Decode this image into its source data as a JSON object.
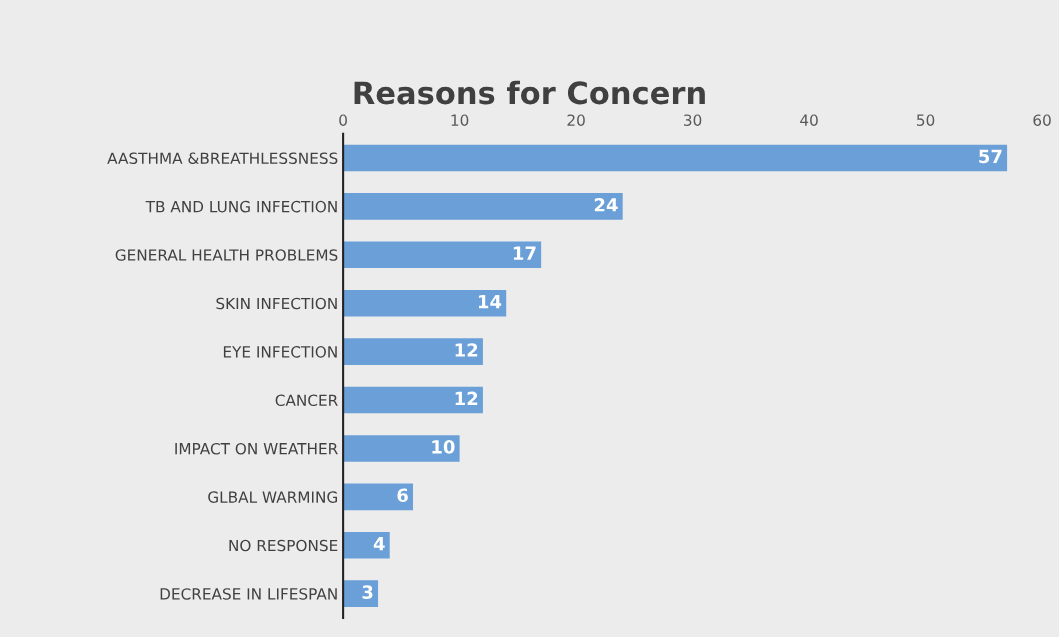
{
  "chart_data": {
    "type": "bar",
    "orientation": "horizontal",
    "title": "Reasons for Concern",
    "categories": [
      "AASTHMA &BREATHLESSNESS",
      "TB AND LUNG INFECTION",
      "GENERAL HEALTH PROBLEMS",
      "SKIN INFECTION",
      "EYE INFECTION",
      "CANCER",
      "IMPACT ON WEATHER",
      "GLBAL WARMING",
      "NO RESPONSE",
      "DECREASE IN LIFESPAN"
    ],
    "values": [
      57,
      24,
      17,
      14,
      12,
      12,
      10,
      6,
      4,
      3
    ],
    "color": "#6a9fd8",
    "xlim": [
      0,
      60
    ],
    "xticks": [
      0,
      10,
      20,
      30,
      40,
      50,
      60
    ],
    "grid": false,
    "data_labels": true
  }
}
